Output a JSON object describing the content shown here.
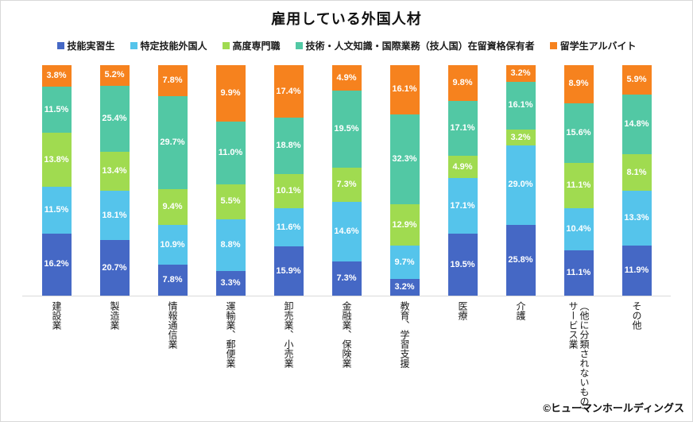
{
  "chart_data": {
    "type": "bar",
    "subtype": "stacked-percent-normalized",
    "title": "雇用している外国人材",
    "xlabel": "",
    "ylabel": "",
    "legend_position": "top",
    "grid": false,
    "categories": [
      "建設業",
      "製造業",
      "情報通信業",
      "運輸業、郵便業",
      "卸売業、小売業",
      "金融業、保険業",
      "教育、学習支援",
      "医療",
      "介護",
      "（他に分類されないもの）\nサービス業",
      "その他"
    ],
    "series": [
      {
        "name": "技能実習生",
        "color": "#4568C5",
        "values": [
          16.2,
          20.7,
          7.8,
          3.3,
          15.9,
          7.3,
          3.2,
          19.5,
          25.8,
          11.1,
          11.9
        ]
      },
      {
        "name": "特定技能外国人",
        "color": "#55C4EB",
        "values": [
          11.5,
          18.1,
          10.9,
          8.8,
          11.6,
          14.6,
          9.7,
          17.1,
          29.0,
          10.4,
          13.3
        ]
      },
      {
        "name": "高度専門職",
        "color": "#A0DB50",
        "values": [
          13.8,
          13.4,
          9.4,
          5.5,
          10.1,
          7.3,
          12.9,
          4.9,
          3.2,
          11.1,
          8.1
        ]
      },
      {
        "name": "技術・人文知識・国際業務（技人国）在留資格保有者",
        "color": "#52C8A4",
        "values": [
          11.5,
          25.4,
          29.7,
          11.0,
          18.8,
          19.5,
          32.3,
          17.1,
          16.1,
          15.6,
          14.8
        ]
      },
      {
        "name": "留学生アルバイト",
        "color": "#F6821E",
        "values": [
          3.8,
          5.2,
          7.8,
          9.9,
          17.4,
          4.9,
          16.1,
          9.8,
          3.2,
          8.9,
          5.9
        ]
      }
    ],
    "value_suffix": "%",
    "label_color": "#ffffff",
    "axis_line_color": "#d9d9d9"
  },
  "footer": {
    "copyright": "©ヒューマンホールディングス"
  }
}
